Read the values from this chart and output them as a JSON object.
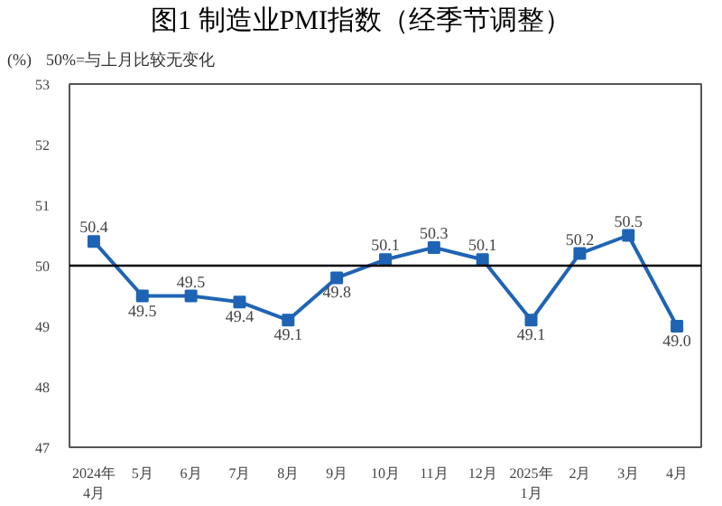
{
  "chart_data": {
    "type": "line",
    "title": "图1 制造业PMI指数（经季节调整）",
    "ylabel": "(%)",
    "annotations": [
      "50%=与上月比较无变化"
    ],
    "categories": [
      "2024年\n4月",
      "5月",
      "6月",
      "7月",
      "8月",
      "9月",
      "10月",
      "11月",
      "12月",
      "2025年\n1月",
      "2月",
      "3月",
      "4月"
    ],
    "series": [
      {
        "color": "#1f64b4",
        "values": [
          50.4,
          49.5,
          49.5,
          49.4,
          49.1,
          49.8,
          50.1,
          50.3,
          50.1,
          49.1,
          50.2,
          50.5,
          49.0
        ],
        "value_labels": [
          "50.4",
          "49.5",
          "49.5",
          "49.4",
          "49.1",
          "49.8",
          "50.1",
          "50.3",
          "50.1",
          "49.1",
          "50.2",
          "50.5",
          "49.0"
        ]
      }
    ],
    "ylim": [
      47,
      53
    ],
    "yticks": [
      47,
      48,
      49,
      50,
      51,
      52,
      53
    ],
    "ref_lines": [
      {
        "axis": "y",
        "value": 50,
        "color": "#000000"
      }
    ],
    "marker": "square",
    "line_style": "solid",
    "grid": false
  }
}
